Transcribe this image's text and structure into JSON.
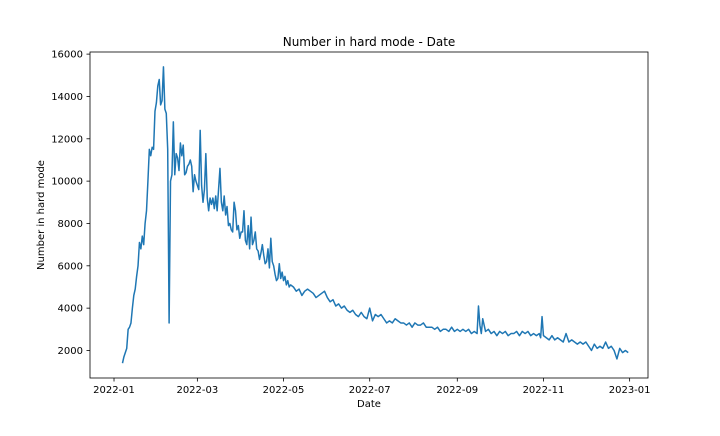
{
  "chart_data": {
    "type": "line",
    "title": "Number in hard mode - Date",
    "xlabel": "Date",
    "ylabel": "Number in hard mode",
    "xlim": [
      "2021-12-15",
      "2023-01-14"
    ],
    "ylim": [
      700,
      16100
    ],
    "x_ticks": [
      "2022-01",
      "2022-03",
      "2022-05",
      "2022-07",
      "2022-09",
      "2022-11",
      "2023-01"
    ],
    "x_tick_labels": [
      "2022-01",
      "2022-03",
      "2022-05",
      "2022-07",
      "2022-09",
      "2022-11",
      "2023-01"
    ],
    "y_ticks": [
      2000,
      4000,
      6000,
      8000,
      10000,
      12000,
      14000,
      16000
    ],
    "y_tick_labels": [
      "2000",
      "4000",
      "6000",
      "8000",
      "10000",
      "12000",
      "14000",
      "16000"
    ],
    "grid": false,
    "color": "#1f77b4",
    "series": [
      {
        "x": [
          "2022-01-07",
          "2022-01-08",
          "2022-01-09",
          "2022-01-10",
          "2022-01-11",
          "2022-01-12",
          "2022-01-13",
          "2022-01-14",
          "2022-01-15",
          "2022-01-16",
          "2022-01-17",
          "2022-01-18",
          "2022-01-19",
          "2022-01-20",
          "2022-01-21",
          "2022-01-22",
          "2022-01-23",
          "2022-01-24",
          "2022-01-25",
          "2022-01-26",
          "2022-01-27",
          "2022-01-28",
          "2022-01-29",
          "2022-01-30",
          "2022-01-31",
          "2022-02-01",
          "2022-02-02",
          "2022-02-03",
          "2022-02-04",
          "2022-02-05",
          "2022-02-06",
          "2022-02-07",
          "2022-02-08",
          "2022-02-09",
          "2022-02-10",
          "2022-02-11",
          "2022-02-12",
          "2022-02-13",
          "2022-02-14",
          "2022-02-15",
          "2022-02-16",
          "2022-02-17",
          "2022-02-18",
          "2022-02-19",
          "2022-02-20",
          "2022-02-21",
          "2022-02-22",
          "2022-02-23",
          "2022-02-24",
          "2022-02-25",
          "2022-02-26",
          "2022-02-27",
          "2022-02-28",
          "2022-03-01",
          "2022-03-02",
          "2022-03-03",
          "2022-03-04",
          "2022-03-05",
          "2022-03-06",
          "2022-03-07",
          "2022-03-08",
          "2022-03-09",
          "2022-03-10",
          "2022-03-11",
          "2022-03-12",
          "2022-03-13",
          "2022-03-14",
          "2022-03-15",
          "2022-03-16",
          "2022-03-17",
          "2022-03-18",
          "2022-03-19",
          "2022-03-20",
          "2022-03-21",
          "2022-03-22",
          "2022-03-23",
          "2022-03-24",
          "2022-03-25",
          "2022-03-26",
          "2022-03-27",
          "2022-03-28",
          "2022-03-29",
          "2022-03-30",
          "2022-03-31",
          "2022-04-01",
          "2022-04-02",
          "2022-04-03",
          "2022-04-04",
          "2022-04-05",
          "2022-04-06",
          "2022-04-07",
          "2022-04-08",
          "2022-04-09",
          "2022-04-10",
          "2022-04-11",
          "2022-04-12",
          "2022-04-13",
          "2022-04-14",
          "2022-04-15",
          "2022-04-16",
          "2022-04-17",
          "2022-04-18",
          "2022-04-19",
          "2022-04-20",
          "2022-04-21",
          "2022-04-22",
          "2022-04-23",
          "2022-04-24",
          "2022-04-25",
          "2022-04-26",
          "2022-04-27",
          "2022-04-28",
          "2022-04-29",
          "2022-04-30",
          "2022-05-01",
          "2022-05-02",
          "2022-05-03",
          "2022-05-04",
          "2022-05-05",
          "2022-05-06",
          "2022-05-08",
          "2022-05-10",
          "2022-05-12",
          "2022-05-14",
          "2022-05-16",
          "2022-05-18",
          "2022-05-20",
          "2022-05-22",
          "2022-05-24",
          "2022-05-26",
          "2022-05-28",
          "2022-05-30",
          "2022-06-01",
          "2022-06-03",
          "2022-06-05",
          "2022-06-07",
          "2022-06-09",
          "2022-06-11",
          "2022-06-13",
          "2022-06-15",
          "2022-06-17",
          "2022-06-19",
          "2022-06-21",
          "2022-06-23",
          "2022-06-25",
          "2022-06-27",
          "2022-06-29",
          "2022-07-01",
          "2022-07-03",
          "2022-07-05",
          "2022-07-07",
          "2022-07-09",
          "2022-07-11",
          "2022-07-13",
          "2022-07-15",
          "2022-07-17",
          "2022-07-19",
          "2022-07-21",
          "2022-07-23",
          "2022-07-25",
          "2022-07-27",
          "2022-07-29",
          "2022-07-31",
          "2022-08-02",
          "2022-08-04",
          "2022-08-06",
          "2022-08-08",
          "2022-08-10",
          "2022-08-12",
          "2022-08-14",
          "2022-08-16",
          "2022-08-18",
          "2022-08-20",
          "2022-08-22",
          "2022-08-24",
          "2022-08-26",
          "2022-08-28",
          "2022-08-30",
          "2022-09-01",
          "2022-09-03",
          "2022-09-05",
          "2022-09-07",
          "2022-09-09",
          "2022-09-11",
          "2022-09-13",
          "2022-09-15",
          "2022-09-16",
          "2022-09-17",
          "2022-09-18",
          "2022-09-19",
          "2022-09-21",
          "2022-09-23",
          "2022-09-25",
          "2022-09-27",
          "2022-09-29",
          "2022-10-01",
          "2022-10-03",
          "2022-10-05",
          "2022-10-07",
          "2022-10-09",
          "2022-10-11",
          "2022-10-13",
          "2022-10-15",
          "2022-10-17",
          "2022-10-19",
          "2022-10-21",
          "2022-10-23",
          "2022-10-25",
          "2022-10-27",
          "2022-10-29",
          "2022-10-30",
          "2022-10-31",
          "2022-11-01",
          "2022-11-03",
          "2022-11-05",
          "2022-11-07",
          "2022-11-09",
          "2022-11-11",
          "2022-11-13",
          "2022-11-15",
          "2022-11-17",
          "2022-11-19",
          "2022-11-21",
          "2022-11-23",
          "2022-11-25",
          "2022-11-27",
          "2022-11-29",
          "2022-12-01",
          "2022-12-03",
          "2022-12-05",
          "2022-12-07",
          "2022-12-09",
          "2022-12-11",
          "2022-12-13",
          "2022-12-15",
          "2022-12-17",
          "2022-12-19",
          "2022-12-21",
          "2022-12-23",
          "2022-12-25",
          "2022-12-27",
          "2022-12-29",
          "2022-12-31"
        ],
        "y": [
          1400,
          1700,
          1900,
          2100,
          3000,
          3100,
          3300,
          4000,
          4600,
          4900,
          5500,
          6000,
          7100,
          6800,
          7400,
          7000,
          8000,
          8600,
          10000,
          11500,
          11200,
          11600,
          11500,
          13300,
          13700,
          14500,
          14800,
          13600,
          13800,
          15400,
          13400,
          13200,
          11500,
          3300,
          10000,
          10300,
          12800,
          10300,
          11300,
          11100,
          10500,
          11800,
          11200,
          11700,
          10300,
          10400,
          10700,
          10800,
          11000,
          10700,
          9500,
          10300,
          10000,
          9800,
          9600,
          12400,
          9800,
          9000,
          9600,
          11300,
          9200,
          8600,
          9200,
          8900,
          9200,
          8700,
          9300,
          8600,
          9600,
          10600,
          9000,
          8600,
          9300,
          8400,
          8800,
          7900,
          8000,
          7700,
          7600,
          9000,
          8600,
          7700,
          7900,
          7300,
          7600,
          7600,
          8600,
          7200,
          7000,
          7900,
          6800,
          8300,
          7000,
          7200,
          7600,
          6800,
          6700,
          6300,
          6600,
          7000,
          6500,
          6100,
          6200,
          6800,
          5900,
          7300,
          6200,
          6000,
          5600,
          5300,
          5400,
          6100,
          5400,
          5700,
          5300,
          5500,
          5100,
          5300,
          5000,
          5100,
          5000,
          4800,
          4900,
          4600,
          4800,
          4900,
          4800,
          4700,
          4500,
          4600,
          4700,
          4800,
          4500,
          4300,
          4400,
          4100,
          4200,
          4000,
          4100,
          3900,
          3800,
          3900,
          3700,
          3600,
          3800,
          3600,
          3500,
          4000,
          3400,
          3700,
          3600,
          3700,
          3500,
          3300,
          3400,
          3300,
          3500,
          3400,
          3300,
          3300,
          3200,
          3300,
          3100,
          3300,
          3200,
          3200,
          3300,
          3100,
          3100,
          3100,
          3000,
          3100,
          2900,
          3000,
          3000,
          2900,
          3100,
          2900,
          3000,
          2900,
          3000,
          2900,
          3000,
          2800,
          2900,
          2800,
          4100,
          3200,
          2800,
          3500,
          2900,
          3000,
          2800,
          2900,
          2700,
          2900,
          2800,
          2900,
          2700,
          2800,
          2800,
          2900,
          2700,
          2900,
          2800,
          2900,
          2700,
          2800,
          2700,
          2800,
          2600,
          3600,
          2700,
          2600,
          2500,
          2700,
          2500,
          2600,
          2500,
          2400,
          2800,
          2400,
          2500,
          2400,
          2300,
          2400,
          2300,
          2400,
          2200,
          2000,
          2300,
          2100,
          2200,
          2100,
          2400,
          2100,
          2200,
          2000,
          1600,
          2100,
          1900,
          2000,
          1900
        ]
      }
    ]
  }
}
